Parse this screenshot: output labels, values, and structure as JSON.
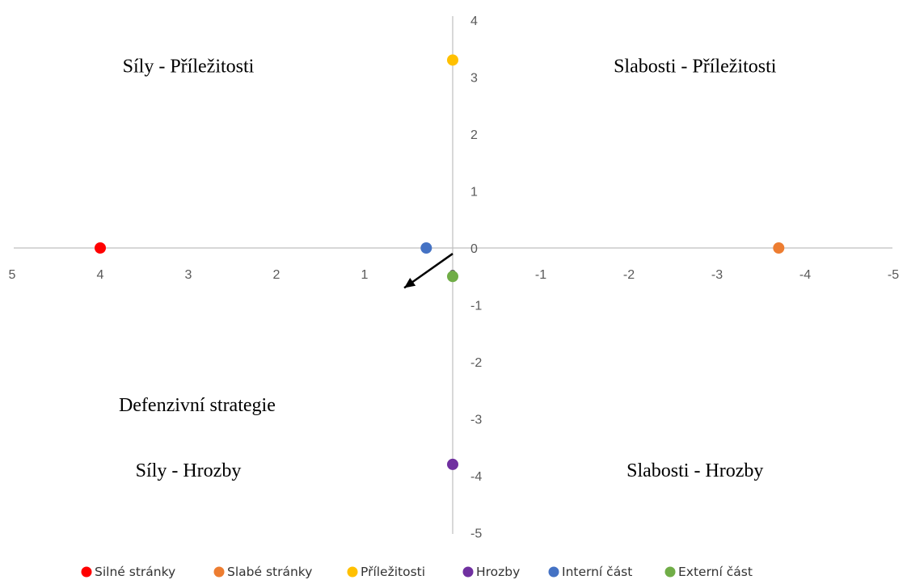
{
  "chart_data": {
    "type": "scatter",
    "xlim": [
      5,
      -5
    ],
    "ylim": [
      -5,
      4
    ],
    "x_ticks": [
      "5",
      "4",
      "3",
      "2",
      "1",
      "0",
      "-1",
      "-2",
      "-3",
      "-4",
      "-5"
    ],
    "y_ticks": [
      "4",
      "3",
      "2",
      "1",
      "0",
      "-1",
      "-2",
      "-3",
      "-4",
      "-5"
    ],
    "grid": false,
    "legend_position": "bottom",
    "series": [
      {
        "name": "Silné stránky",
        "color": "#ff0000",
        "points": [
          {
            "x": 4,
            "y": 0
          }
        ]
      },
      {
        "name": "Slabé stránky",
        "color": "#ed7d31",
        "points": [
          {
            "x": -3.7,
            "y": 0
          }
        ]
      },
      {
        "name": "Příležitosti",
        "color": "#ffc000",
        "points": [
          {
            "x": 0,
            "y": 3.3
          }
        ]
      },
      {
        "name": "Hrozby",
        "color": "#7030a0",
        "points": [
          {
            "x": 0,
            "y": -3.8
          }
        ]
      },
      {
        "name": "Interní část",
        "color": "#4472c4",
        "points": [
          {
            "x": 0.3,
            "y": 0
          }
        ]
      },
      {
        "name": "Externí část",
        "color": "#70ad47",
        "points": [
          {
            "x": 0,
            "y": -0.5
          }
        ]
      }
    ],
    "annotations": [
      {
        "text": "Síly - Příležitosti",
        "x": 3,
        "y": 3.2
      },
      {
        "text": "Slabosti - Příležitosti",
        "x": -2.75,
        "y": 3.2
      },
      {
        "text": "Defenzivní strategie",
        "x": 2.9,
        "y": -2.75
      },
      {
        "text": "Síly - Hrozby",
        "x": 3,
        "y": -3.9
      },
      {
        "text": "Slabosti - Hrozby",
        "x": -2.75,
        "y": -3.9
      }
    ],
    "arrow": {
      "from": {
        "x": 0,
        "y": -0.1
      },
      "to": {
        "x": 0.55,
        "y": -0.7
      }
    }
  }
}
